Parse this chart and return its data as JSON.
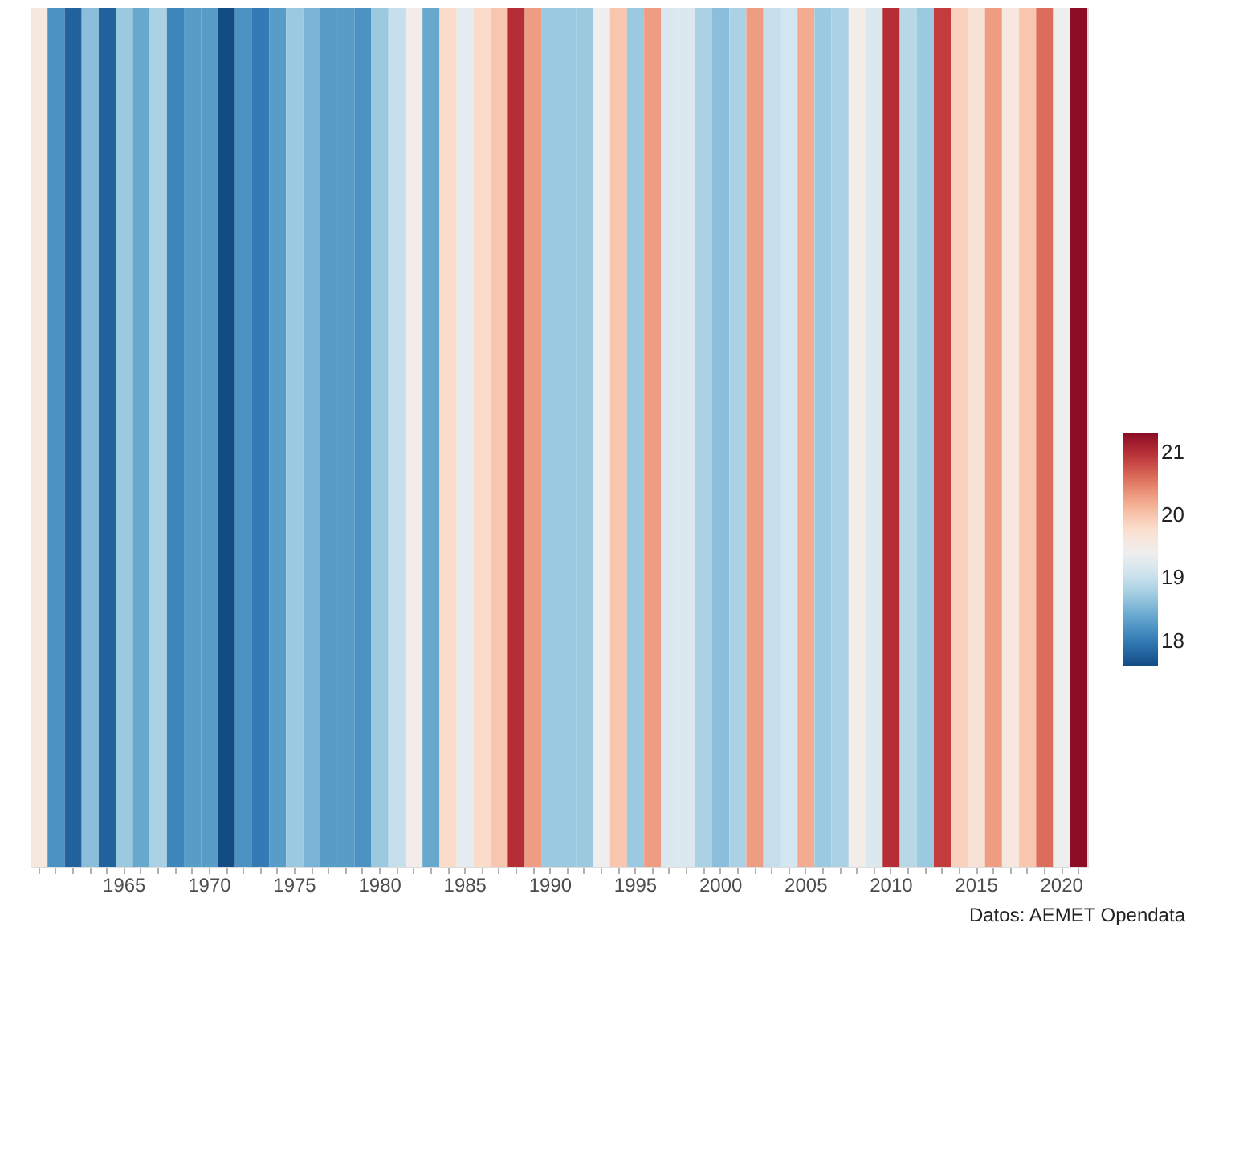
{
  "chart_data": {
    "type": "heatmap",
    "categories": [
      null,
      null,
      null,
      null,
      null,
      "1965",
      null,
      null,
      null,
      null,
      "1970",
      null,
      null,
      null,
      null,
      "1975",
      null,
      null,
      null,
      null,
      "1980",
      null,
      null,
      null,
      null,
      "1985",
      null,
      null,
      null,
      null,
      "1990",
      null,
      null,
      null,
      null,
      "1995",
      null,
      null,
      null,
      null,
      "2000",
      null,
      null,
      null,
      null,
      "2005",
      null,
      null,
      null,
      null,
      "2010",
      null,
      null,
      null,
      null,
      "2015",
      null,
      null,
      null,
      null,
      "2020",
      null
    ],
    "y_categories": [
      null
    ],
    "cells": [
      [
        19.6,
        18.2,
        17.8,
        18.6,
        17.8,
        18.7,
        18.4,
        18.8,
        18.1,
        18.3,
        18.3,
        17.6,
        18.2,
        18.0,
        18.3,
        18.7,
        18.5,
        18.3,
        18.3,
        18.2,
        18.7,
        19.0,
        19.5,
        18.4,
        19.8,
        19.3,
        19.8,
        20.0,
        21.0,
        20.3,
        18.7,
        18.7,
        18.7,
        19.4,
        20.0,
        18.7,
        20.3,
        19.2,
        19.2,
        18.8,
        18.6,
        18.8,
        20.3,
        19.0,
        19.1,
        20.2,
        18.7,
        18.8,
        19.5,
        19.2,
        21.0,
        18.9,
        18.7,
        20.9,
        19.9,
        19.7,
        20.3,
        19.6,
        20.0,
        20.6,
        19.4,
        21.3
      ]
    ],
    "clim": [
      17.6,
      21.3
    ],
    "cticks": [
      18,
      19,
      20,
      21
    ],
    "annotations": [
      "Datos: AEMET Opendata"
    ],
    "grid": false
  }
}
